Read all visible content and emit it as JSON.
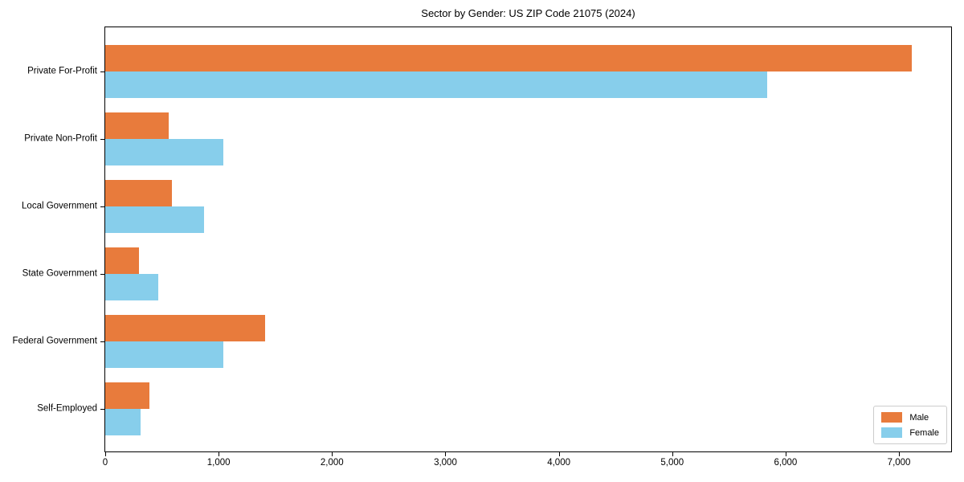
{
  "chart_data": {
    "type": "bar",
    "orientation": "horizontal",
    "title": "Sector by Gender: US ZIP Code 21075 (2024)",
    "categories": [
      "Private For-Profit",
      "Private Non-Profit",
      "Local Government",
      "State Government",
      "Federal Government",
      "Self-Employed"
    ],
    "series": [
      {
        "name": "Male",
        "color": "#e87b3c",
        "values": [
          7110,
          560,
          590,
          300,
          1410,
          390
        ]
      },
      {
        "name": "Female",
        "color": "#87ceeb",
        "values": [
          5840,
          1040,
          870,
          470,
          1040,
          310
        ]
      }
    ],
    "xlabel": "",
    "ylabel": "",
    "xlim": [
      0,
      7460
    ],
    "xticks": [
      0,
      1000,
      2000,
      3000,
      4000,
      5000,
      6000,
      7000
    ],
    "xtick_labels": [
      "0",
      "1,000",
      "2,000",
      "3,000",
      "4,000",
      "5,000",
      "6,000",
      "7,000"
    ],
    "grid": false,
    "legend": {
      "position": "lower-right",
      "items": [
        "Male",
        "Female"
      ]
    },
    "colors": {
      "axis": "#000000",
      "background": "#ffffff",
      "legend_border": "#cccccc"
    }
  }
}
